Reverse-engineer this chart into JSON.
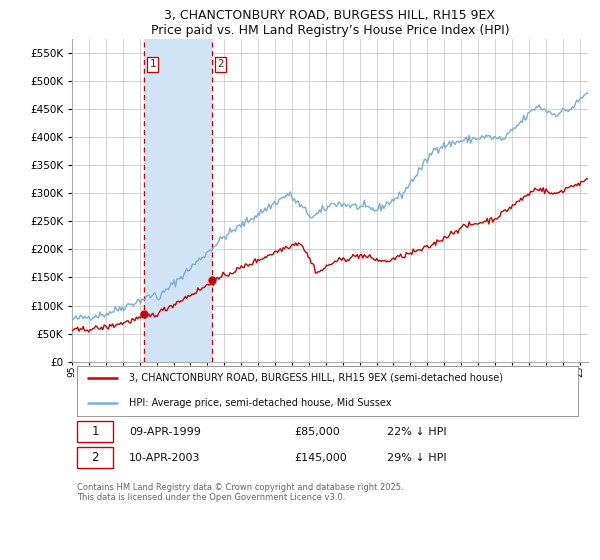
{
  "title": "3, CHANCTONBURY ROAD, BURGESS HILL, RH15 9EX",
  "subtitle": "Price paid vs. HM Land Registry’s House Price Index (HPI)",
  "legend_label_red": "3, CHANCTONBURY ROAD, BURGESS HILL, RH15 9EX (semi-detached house)",
  "legend_label_blue": "HPI: Average price, semi-detached house, Mid Sussex",
  "transaction1_date": "09-APR-1999",
  "transaction1_price": "£85,000",
  "transaction1_hpi": "22% ↓ HPI",
  "transaction2_date": "10-APR-2003",
  "transaction2_price": "£145,000",
  "transaction2_hpi": "29% ↓ HPI",
  "footer": "Contains HM Land Registry data © Crown copyright and database right 2025.\nThis data is licensed under the Open Government Licence v3.0.",
  "vline1_x": 1999.27,
  "vline2_x": 2003.27,
  "marker1_x": 1999.27,
  "marker1_y": 85000,
  "marker2_x": 2003.27,
  "marker2_y": 145000,
  "ylim": [
    0,
    575000
  ],
  "yticks": [
    0,
    50000,
    100000,
    150000,
    200000,
    250000,
    300000,
    350000,
    400000,
    450000,
    500000,
    550000
  ],
  "xmin": 1995.0,
  "xmax": 2025.5,
  "red_color": "#cc0000",
  "blue_color": "#7aaed6",
  "vline_color": "#cc0000",
  "span_color": "#d0e4f5",
  "background_color": "#ffffff",
  "grid_color": "#cccccc"
}
